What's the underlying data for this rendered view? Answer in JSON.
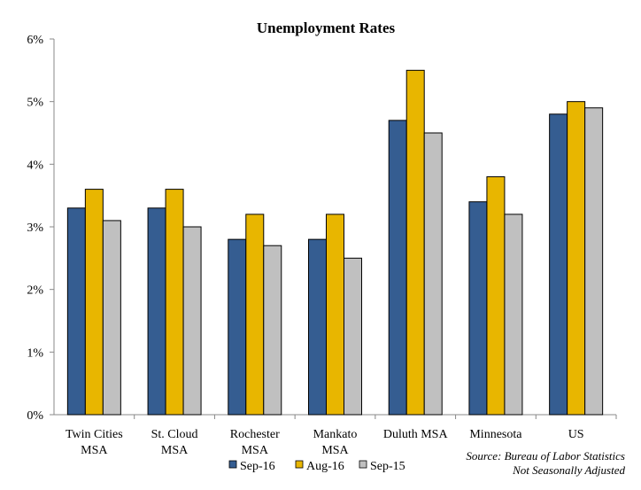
{
  "chart_data": {
    "type": "bar",
    "title": "Unemployment Rates",
    "xlabel": "",
    "ylabel": "",
    "ylim": [
      0,
      6
    ],
    "y_ticks": [
      "0%",
      "1%",
      "2%",
      "3%",
      "4%",
      "5%",
      "6%"
    ],
    "grid": false,
    "legend_position": "bottom",
    "categories": [
      [
        "Twin Cities",
        "MSA"
      ],
      [
        "St. Cloud",
        "MSA"
      ],
      [
        "Rochester",
        "MSA"
      ],
      [
        "Mankato",
        "MSA"
      ],
      [
        "Duluth MSA"
      ],
      [
        "Minnesota"
      ],
      [
        "US"
      ]
    ],
    "series": [
      {
        "name": "Sep-16",
        "color": "#355D91",
        "values": [
          3.3,
          3.3,
          2.8,
          2.8,
          4.7,
          3.4,
          4.8
        ]
      },
      {
        "name": "Aug-16",
        "color": "#E8B600",
        "values": [
          3.6,
          3.6,
          3.2,
          3.2,
          5.5,
          3.8,
          5.0
        ]
      },
      {
        "name": "Sep-15",
        "color": "#C0C0C0",
        "values": [
          3.1,
          3.0,
          2.7,
          2.5,
          4.5,
          3.2,
          4.9
        ]
      }
    ]
  },
  "source": {
    "line1": "Source: Bureau of Labor Statistics",
    "line2": "Not Seasonally Adjusted"
  }
}
